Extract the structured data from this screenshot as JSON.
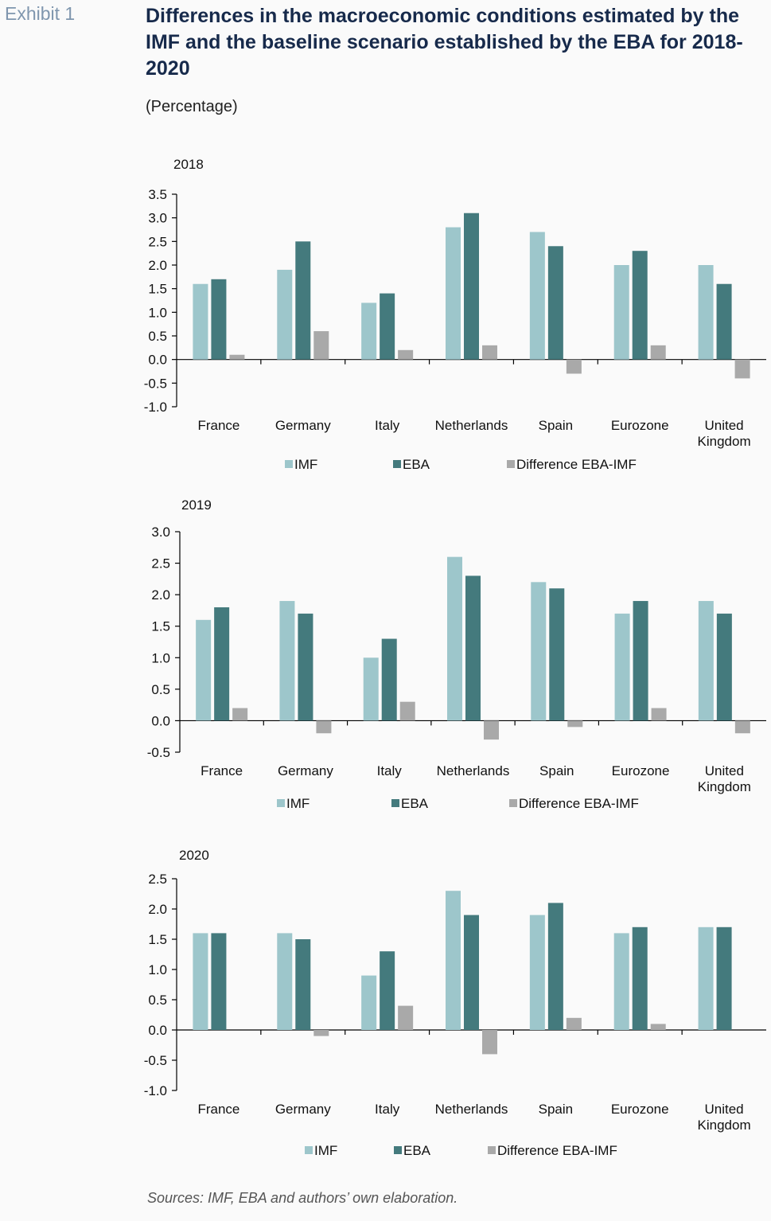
{
  "header": {
    "exhibit": "Exhibit 1",
    "title": "Differences in the macroeconomic conditions estimated by the IMF and the baseline scenario established by the EBA for 2018-2020",
    "unit": "(Percentage)"
  },
  "source": "Sources: IMF, EBA and authors’ own elaboration.",
  "colors": {
    "IMF": "#9dc6cb",
    "EBA": "#447a7d",
    "Difference EBA-IMF": "#a9a9a9"
  },
  "chart_data": [
    {
      "type": "bar",
      "title": "2018",
      "categories": [
        "France",
        "Germany",
        "Italy",
        "Netherlands",
        "Spain",
        "Eurozone",
        "United Kingdom"
      ],
      "series": [
        {
          "name": "IMF",
          "values": [
            1.6,
            1.9,
            1.2,
            2.8,
            2.7,
            2.0,
            2.0
          ]
        },
        {
          "name": "EBA",
          "values": [
            1.7,
            2.5,
            1.4,
            3.1,
            2.4,
            2.3,
            1.6
          ]
        },
        {
          "name": "Difference EBA-IMF",
          "values": [
            0.1,
            0.6,
            0.2,
            0.3,
            -0.3,
            0.3,
            -0.4
          ]
        }
      ],
      "ylim": [
        -1.0,
        3.5
      ],
      "yticks": [
        -1.0,
        -0.5,
        0.0,
        0.5,
        1.0,
        1.5,
        2.0,
        2.5,
        3.0,
        3.5
      ],
      "legend": "bottom",
      "grid": false
    },
    {
      "type": "bar",
      "title": "2019",
      "categories": [
        "France",
        "Germany",
        "Italy",
        "Netherlands",
        "Spain",
        "Eurozone",
        "United Kingdom"
      ],
      "series": [
        {
          "name": "IMF",
          "values": [
            1.6,
            1.9,
            1.0,
            2.6,
            2.2,
            1.7,
            1.9
          ]
        },
        {
          "name": "EBA",
          "values": [
            1.8,
            1.7,
            1.3,
            2.3,
            2.1,
            1.9,
            1.7
          ]
        },
        {
          "name": "Difference EBA-IMF",
          "values": [
            0.2,
            -0.2,
            0.3,
            -0.3,
            -0.1,
            0.2,
            -0.2
          ]
        }
      ],
      "ylim": [
        -0.5,
        3.0
      ],
      "yticks": [
        -0.5,
        0.0,
        0.5,
        1.0,
        1.5,
        2.0,
        2.5,
        3.0
      ],
      "legend": "bottom",
      "grid": false
    },
    {
      "type": "bar",
      "title": "2020",
      "categories": [
        "France",
        "Germany",
        "Italy",
        "Netherlands",
        "Spain",
        "Eurozone",
        "United Kingdom"
      ],
      "series": [
        {
          "name": "IMF",
          "values": [
            1.6,
            1.6,
            0.9,
            2.3,
            1.9,
            1.6,
            1.7
          ]
        },
        {
          "name": "EBA",
          "values": [
            1.6,
            1.5,
            1.3,
            1.9,
            2.1,
            1.7,
            1.7
          ]
        },
        {
          "name": "Difference EBA-IMF",
          "values": [
            0.0,
            -0.1,
            0.4,
            -0.4,
            0.2,
            0.1,
            0.0
          ]
        }
      ],
      "ylim": [
        -1.0,
        2.5
      ],
      "yticks": [
        -1.0,
        -0.5,
        0.0,
        0.5,
        1.0,
        1.5,
        2.0,
        2.5
      ],
      "legend": "bottom",
      "grid": false
    }
  ]
}
